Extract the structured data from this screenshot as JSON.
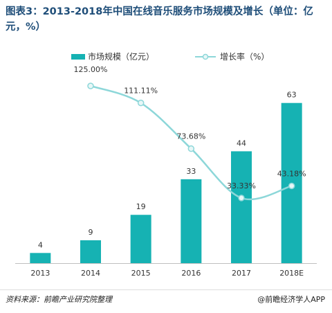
{
  "chart_data": {
    "type": "bar",
    "title": "图表3：2013-2018年中国在线音乐服务市场规模及增长（单位：亿元，%）",
    "categories": [
      "2013",
      "2014",
      "2015",
      "2016",
      "2017",
      "2018E"
    ],
    "series": [
      {
        "name": "市场规模（亿元）",
        "kind": "bar",
        "values": [
          4,
          9,
          19,
          33,
          44,
          63
        ],
        "labels": [
          "4",
          "9",
          "19",
          "33",
          "44",
          "63"
        ],
        "color": "#16b2b3"
      },
      {
        "name": "增长率（%）",
        "kind": "line",
        "smooth": true,
        "values": [
          null,
          125.0,
          111.11,
          73.68,
          33.33,
          43.18
        ],
        "labels": [
          "",
          "125.00%",
          "111.11%",
          "73.68%",
          "33.33%",
          "43.18%"
        ],
        "color": "#8dd7d9"
      }
    ],
    "ylim": [
      0,
      70
    ],
    "y2lim": [
      -20,
      150
    ],
    "grid": false,
    "legend": "top"
  },
  "footer": {
    "source": "资料来源：前瞻产业研究院整理",
    "brand": "@前瞻经济学人APP"
  },
  "colors": {
    "title": "#1f4e79",
    "bar": "#16b2b3",
    "line": "#8dd7d9",
    "line_marker_fill": "#e8f7f7"
  }
}
